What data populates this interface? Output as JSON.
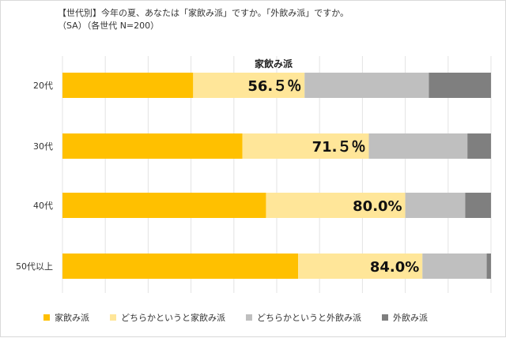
{
  "header": {
    "title": "【世代別】今年の夏、あなたは「家飲み派」ですか。「外飲み派」ですか。",
    "subtitle": "（SA）（各世代 N=200）"
  },
  "chart_data": {
    "type": "bar",
    "orientation": "horizontal",
    "stacked": true,
    "normalized": true,
    "annotation": "家飲み派",
    "categories": [
      "20代",
      "30代",
      "40代",
      "50代以上"
    ],
    "series": [
      {
        "name": "家飲み派",
        "color": "#FFC000",
        "values": [
          30.5,
          42.0,
          47.5,
          55.0
        ]
      },
      {
        "name": "どちらかというと家飲み派",
        "color": "#FFE699",
        "values": [
          26.0,
          29.5,
          32.5,
          29.0
        ]
      },
      {
        "name": "どちらかというと外飲み派",
        "color": "#BFBFBF",
        "values": [
          29.0,
          23.0,
          14.0,
          15.0
        ]
      },
      {
        "name": "外飲み派",
        "color": "#7F7F7F",
        "values": [
          14.5,
          5.5,
          6.0,
          1.0
        ]
      }
    ],
    "data_labels": [
      "56.５％",
      "71.５％",
      "80.0%",
      "84.0%"
    ],
    "xlim": [
      0,
      100
    ],
    "grid": "vertical",
    "legend_position": "bottom"
  }
}
